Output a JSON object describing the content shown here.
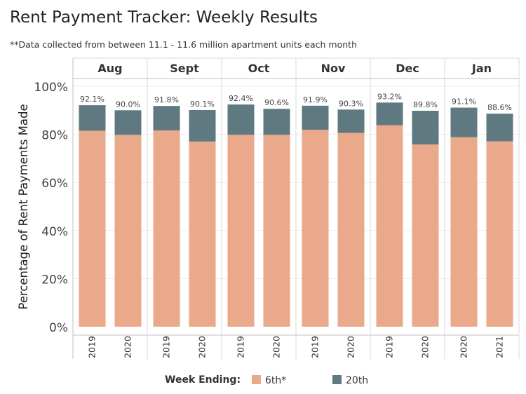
{
  "title": "Rent Payment Tracker: Weekly Results",
  "subtitle": "**Data collected from between 11.1 - 11.6 million apartment units each month",
  "chart_data": {
    "type": "bar",
    "stacked": true,
    "ylabel": "Percentage of Rent Payments Made",
    "ylim": [
      0,
      100
    ],
    "yticks": [
      "0%",
      "20%",
      "40%",
      "60%",
      "80%",
      "100%"
    ],
    "legend_title": "Week Ending:",
    "legend_position": "bottom",
    "colors": {
      "6th*": "#E9A98A",
      "20th": "#5E797F"
    },
    "groups": [
      {
        "month": "Aug",
        "years": [
          "2019",
          "2020"
        ],
        "sixth": [
          81.5,
          79.8
        ],
        "total": [
          92.1,
          90.0
        ],
        "labels": [
          "92.1%",
          "90.0%"
        ]
      },
      {
        "month": "Sept",
        "years": [
          "2019",
          "2020"
        ],
        "sixth": [
          81.6,
          77.0
        ],
        "total": [
          91.8,
          90.1
        ],
        "labels": [
          "91.8%",
          "90.1%"
        ]
      },
      {
        "month": "Oct",
        "years": [
          "2019",
          "2020"
        ],
        "sixth": [
          79.8,
          79.8
        ],
        "total": [
          92.4,
          90.6
        ],
        "labels": [
          "92.4%",
          "90.6%"
        ]
      },
      {
        "month": "Nov",
        "years": [
          "2019",
          "2020"
        ],
        "sixth": [
          81.9,
          80.6
        ],
        "total": [
          91.9,
          90.3
        ],
        "labels": [
          "91.9%",
          "90.3%"
        ]
      },
      {
        "month": "Dec",
        "years": [
          "2019",
          "2020"
        ],
        "sixth": [
          83.8,
          75.8
        ],
        "total": [
          93.2,
          89.8
        ],
        "labels": [
          "93.2%",
          "89.8%"
        ]
      },
      {
        "month": "Jan",
        "years": [
          "2020",
          "2021"
        ],
        "sixth": [
          78.8,
          77.1
        ],
        "total": [
          91.1,
          88.6
        ],
        "labels": [
          "91.1%",
          "88.6%"
        ]
      }
    ],
    "series": [
      {
        "name": "6th*"
      },
      {
        "name": "20th"
      }
    ]
  }
}
